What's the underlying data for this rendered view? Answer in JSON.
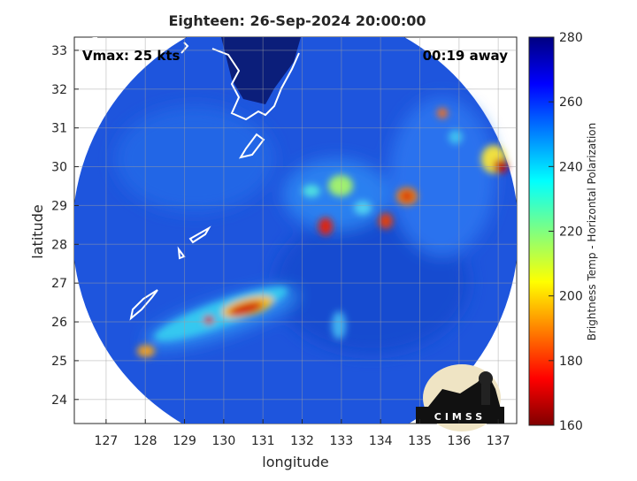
{
  "header": {
    "title": "Eighteen: 26-Sep-2024 20:00:00"
  },
  "annotations": {
    "vmax": "Vmax: 25 kts",
    "time_away": "00:19 away"
  },
  "map": {
    "x_label": "longitude",
    "y_label": "latitude",
    "xlim": [
      126.19,
      137.47
    ],
    "ylim": [
      23.38,
      33.34
    ],
    "xticks": [
      127,
      128,
      129,
      130,
      131,
      132,
      133,
      134,
      135,
      136,
      137
    ],
    "yticks": [
      24,
      25,
      26,
      27,
      28,
      29,
      30,
      31,
      32,
      33
    ],
    "grid": true
  },
  "colorbar": {
    "label": "Brightness Temp - Horizontal Polarization",
    "lim": [
      160,
      280
    ],
    "ticks": [
      160,
      180,
      200,
      220,
      240,
      260,
      280
    ]
  },
  "logo": {
    "text": "CIMSS"
  }
}
